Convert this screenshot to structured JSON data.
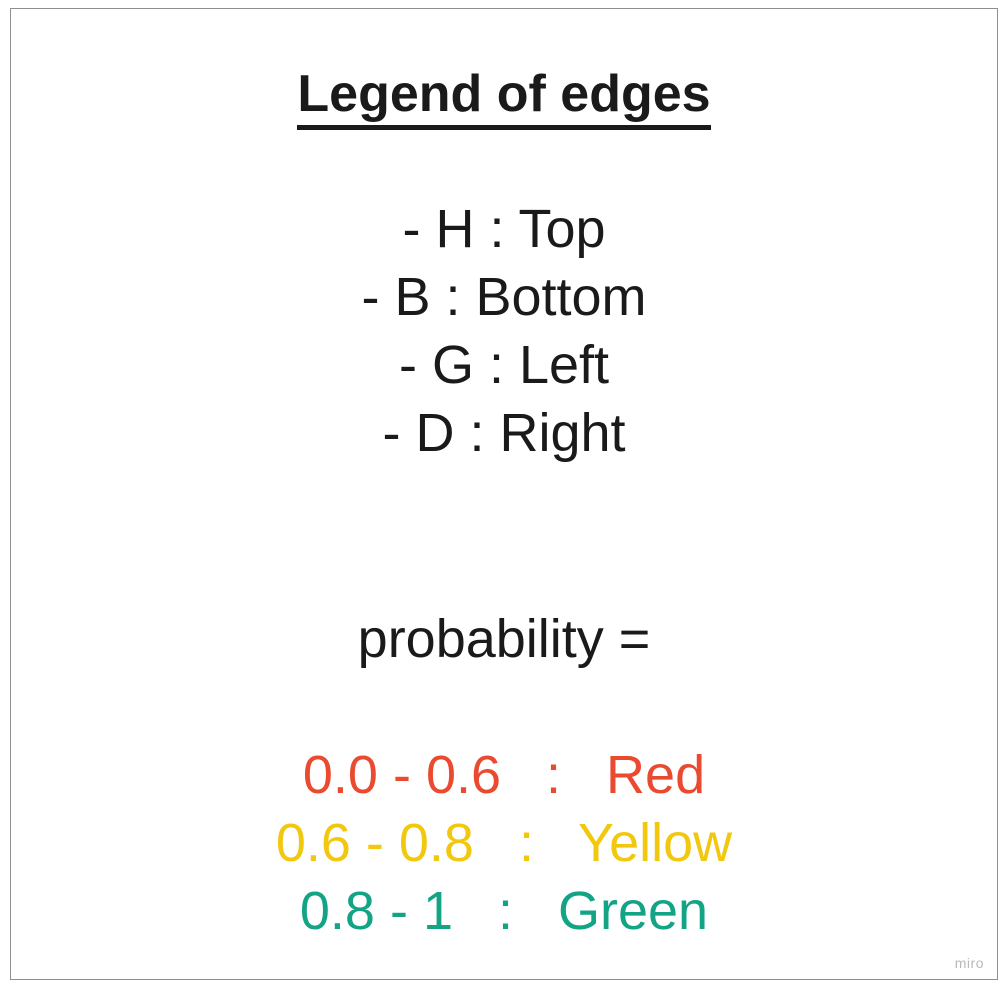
{
  "title": "Legend of edges",
  "edges": [
    {
      "text": "- H : Top"
    },
    {
      "text": "- B : Bottom"
    },
    {
      "text": "- G : Left"
    },
    {
      "text": "- D : Right"
    }
  ],
  "probability_label": "probability =",
  "ranges": [
    {
      "text": "0.0 - 0.6   :   Red",
      "color": "#e94a30"
    },
    {
      "text": "0.6 - 0.8   :   Yellow",
      "color": "#f2c80f"
    },
    {
      "text": "0.8 - 1   :   Green",
      "color": "#13a385"
    }
  ],
  "watermark": "miro"
}
